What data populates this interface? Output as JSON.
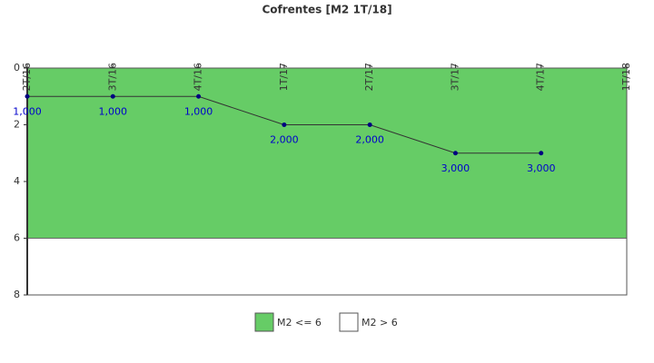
{
  "chart_data": {
    "type": "line",
    "title": "Cofrentes [M2 1T/18]",
    "categories": [
      "2T/16",
      "3T/16",
      "4T/16",
      "1T/17",
      "2T/17",
      "3T/17",
      "4T/17",
      "1T/18"
    ],
    "values": [
      1,
      1,
      1,
      2,
      2,
      3,
      3,
      null
    ],
    "value_labels": [
      "1,000",
      "1,000",
      "1,000",
      "2,000",
      "2,000",
      "3,000",
      "3,000",
      null
    ],
    "line_color": "#333333",
    "point_color": "#000080",
    "label_color": "#0000cc",
    "ylim": [
      0,
      8
    ],
    "yticks": [
      0,
      2,
      4,
      6,
      8
    ],
    "y_inverted": true,
    "bands": [
      {
        "name": "M2 <= 6",
        "color": "#66cc66",
        "range": [
          0,
          6
        ]
      },
      {
        "name": "M2 > 6",
        "color": "#ffffff",
        "range": [
          6,
          8
        ]
      }
    ]
  }
}
